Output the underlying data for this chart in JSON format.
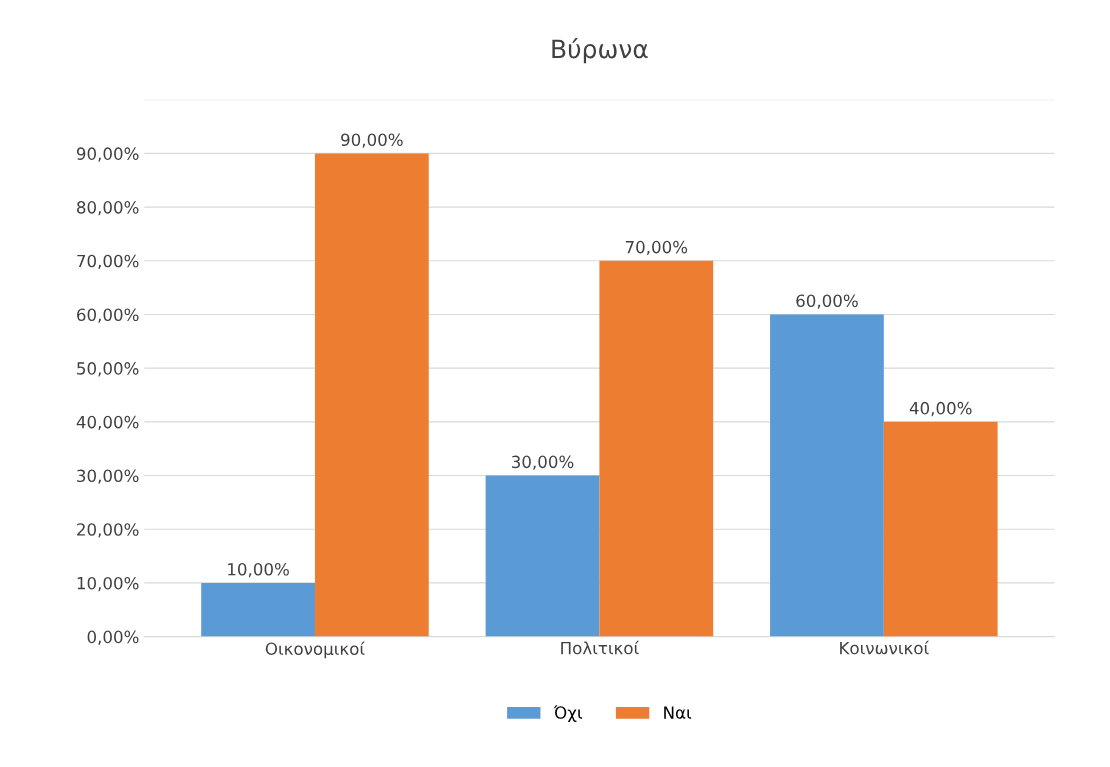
{
  "chart_data": {
    "type": "bar",
    "title": "Βύρωνα",
    "categories": [
      "Οικονομικοί",
      "Πολιτικοί",
      "Κοινωνικοί"
    ],
    "series": [
      {
        "name": "Όχι",
        "color": "#5b9bd5",
        "values": [
          10,
          30,
          60
        ],
        "value_labels": [
          "10,00%",
          "30,00%",
          "60,00%"
        ]
      },
      {
        "name": "Ναι",
        "color": "#ed7d31",
        "values": [
          90,
          70,
          40
        ],
        "value_labels": [
          "90,00%",
          "70,00%",
          "40,00%"
        ]
      }
    ],
    "ylim": [
      0,
      100
    ],
    "yticks": [
      {
        "value": 0,
        "label": "0,00%"
      },
      {
        "value": 10,
        "label": "10,00%"
      },
      {
        "value": 20,
        "label": "20,00%"
      },
      {
        "value": 30,
        "label": "30,00%"
      },
      {
        "value": 40,
        "label": "40,00%"
      },
      {
        "value": 50,
        "label": "50,00%"
      },
      {
        "value": 60,
        "label": "60,00%"
      },
      {
        "value": 70,
        "label": "70,00%"
      },
      {
        "value": 80,
        "label": "80,00%"
      },
      {
        "value": 90,
        "label": "90,00%"
      },
      {
        "value": 100,
        "label": null
      }
    ],
    "grid": "y",
    "legend": "bottom"
  }
}
